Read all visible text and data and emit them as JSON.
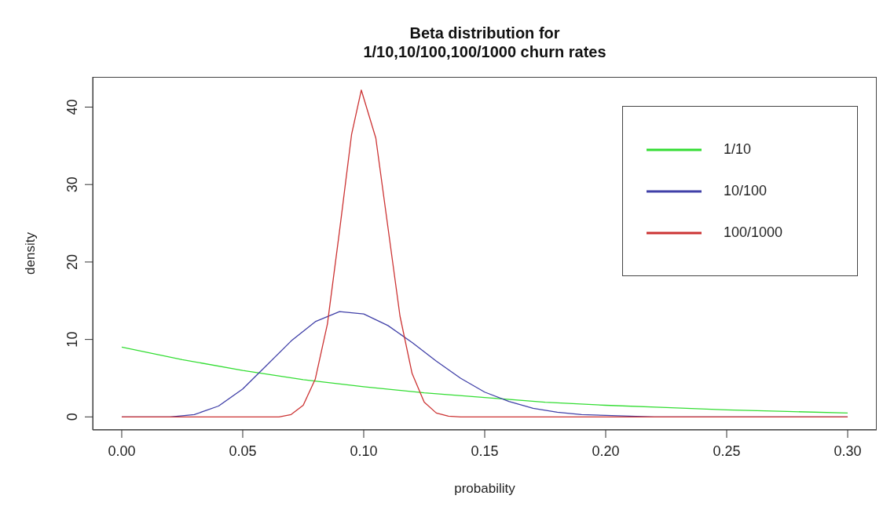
{
  "chart_data": {
    "type": "line",
    "title": "Beta distribution for\n1/10,10/100,100/1000 churn rates",
    "xlabel": "probability",
    "ylabel": "density",
    "xlim": [
      -0.012,
      0.312
    ],
    "ylim": [
      -1.69,
      43.9
    ],
    "xticks": [
      {
        "value": 0,
        "label": "0.00"
      },
      0.05,
      {
        "value": 0.1,
        "label": "0.10"
      },
      0.15,
      {
        "value": 0.2,
        "label": "0.20"
      },
      0.25,
      {
        "value": 0.3,
        "label": "0.30"
      }
    ],
    "yticks": [
      0,
      10,
      20,
      30,
      40
    ],
    "grid": false,
    "legend": "top right",
    "marker": "none",
    "line_style": "solid",
    "series": [
      {
        "name": "1/10",
        "color": "#33dd33",
        "x": [
          0,
          0.025,
          0.05,
          0.075,
          0.1,
          0.125,
          0.15,
          0.175,
          0.2,
          0.225,
          0.25,
          0.275,
          0.3
        ],
        "values": [
          9,
          7.4,
          6.0,
          4.8,
          3.9,
          3.1,
          2.5,
          1.9,
          1.5,
          1.2,
          0.9,
          0.7,
          0.5
        ]
      },
      {
        "name": "10/100",
        "color": "#4040a8",
        "x": [
          0,
          0.01,
          0.02,
          0.03,
          0.04,
          0.05,
          0.06,
          0.07,
          0.08,
          0.09,
          0.1,
          0.11,
          0.12,
          0.13,
          0.14,
          0.15,
          0.16,
          0.17,
          0.18,
          0.19,
          0.2,
          0.22,
          0.25,
          0.3
        ],
        "values": [
          0,
          0,
          0,
          0.3,
          1.4,
          3.6,
          6.7,
          9.8,
          12.3,
          13.6,
          13.3,
          11.8,
          9.6,
          7.2,
          5.0,
          3.2,
          2.0,
          1.1,
          0.6,
          0.3,
          0.2,
          0,
          0,
          0
        ]
      },
      {
        "name": "100/1000",
        "color": "#cc3333",
        "x": [
          0,
          0.05,
          0.06,
          0.065,
          0.07,
          0.075,
          0.08,
          0.085,
          0.09,
          0.095,
          0.099,
          0.105,
          0.11,
          0.115,
          0.12,
          0.125,
          0.13,
          0.135,
          0.14,
          0.15,
          0.2,
          0.3
        ],
        "values": [
          0,
          0,
          0,
          0,
          0.3,
          1.5,
          4.9,
          12,
          24,
          36.5,
          42.2,
          36,
          24.5,
          13,
          5.6,
          1.9,
          0.5,
          0.1,
          0,
          0,
          0,
          0
        ]
      }
    ]
  }
}
